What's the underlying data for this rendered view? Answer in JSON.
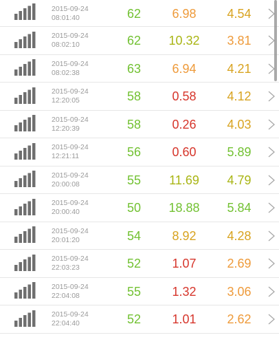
{
  "colors": {
    "green": "#72c132",
    "olive": "#a9b514",
    "orange": "#ee9a3a",
    "gold": "#d8a320",
    "red": "#d6352b",
    "signal_gray": "#6f6f6f",
    "chevron": "#a8a8a8"
  },
  "icons": {
    "signal": "signal-strength-icon",
    "chevron": "chevron-right-icon"
  },
  "rows": [
    {
      "date": "2015-09-24",
      "time": "08:01:40",
      "v1": "62",
      "v1_color": "green",
      "v2": "6.98",
      "v2_color": "orange",
      "v3": "4.54",
      "v3_color": "gold"
    },
    {
      "date": "2015-09-24",
      "time": "08:02:10",
      "v1": "62",
      "v1_color": "green",
      "v2": "10.32",
      "v2_color": "olive",
      "v3": "3.81",
      "v3_color": "orange"
    },
    {
      "date": "2015-09-24",
      "time": "08:02:38",
      "v1": "63",
      "v1_color": "green",
      "v2": "6.94",
      "v2_color": "orange",
      "v3": "4.21",
      "v3_color": "gold"
    },
    {
      "date": "2015-09-24",
      "time": "12:20:05",
      "v1": "58",
      "v1_color": "green",
      "v2": "0.58",
      "v2_color": "red",
      "v3": "4.12",
      "v3_color": "gold"
    },
    {
      "date": "2015-09-24",
      "time": "12:20:39",
      "v1": "58",
      "v1_color": "green",
      "v2": "0.26",
      "v2_color": "red",
      "v3": "4.03",
      "v3_color": "gold"
    },
    {
      "date": "2015-09-24",
      "time": "12:21:11",
      "v1": "56",
      "v1_color": "green",
      "v2": "0.60",
      "v2_color": "red",
      "v3": "5.89",
      "v3_color": "green"
    },
    {
      "date": "2015-09-24",
      "time": "20:00:08",
      "v1": "55",
      "v1_color": "green",
      "v2": "11.69",
      "v2_color": "olive",
      "v3": "4.79",
      "v3_color": "olive"
    },
    {
      "date": "2015-09-24",
      "time": "20:00:40",
      "v1": "50",
      "v1_color": "green",
      "v2": "18.88",
      "v2_color": "green",
      "v3": "5.84",
      "v3_color": "green"
    },
    {
      "date": "2015-09-24",
      "time": "20:01:20",
      "v1": "54",
      "v1_color": "green",
      "v2": "8.92",
      "v2_color": "gold",
      "v3": "4.28",
      "v3_color": "gold"
    },
    {
      "date": "2015-09-24",
      "time": "22:03:23",
      "v1": "52",
      "v1_color": "green",
      "v2": "1.07",
      "v2_color": "red",
      "v3": "2.69",
      "v3_color": "orange"
    },
    {
      "date": "2015-09-24",
      "time": "22:04:08",
      "v1": "55",
      "v1_color": "green",
      "v2": "1.32",
      "v2_color": "red",
      "v3": "3.06",
      "v3_color": "orange"
    },
    {
      "date": "2015-09-24",
      "time": "22:04:40",
      "v1": "52",
      "v1_color": "green",
      "v2": "1.01",
      "v2_color": "red",
      "v3": "2.62",
      "v3_color": "orange"
    }
  ]
}
